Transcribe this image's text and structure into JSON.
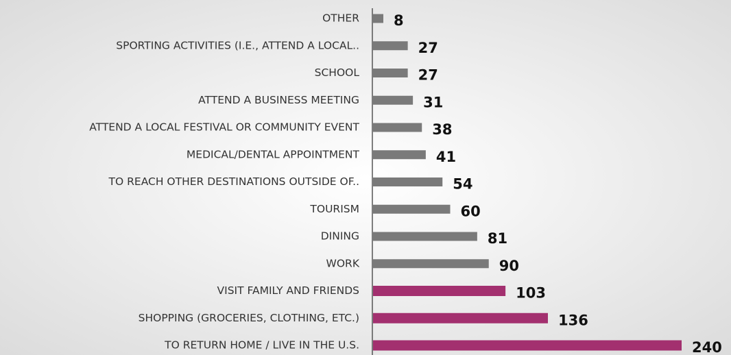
{
  "chart_data": {
    "type": "bar",
    "orientation": "horizontal",
    "categories": [
      "OTHER",
      "SPORTING ACTIVITIES (I.E., ATTEND A LOCAL..",
      "SCHOOL",
      "ATTEND A BUSINESS MEETING",
      "ATTEND A LOCAL FESTIVAL OR COMMUNITY EVENT",
      "MEDICAL/DENTAL APPOINTMENT",
      "TO REACH OTHER DESTINATIONS OUTSIDE OF..",
      "TOURISM",
      "DINING",
      "WORK",
      "VISIT FAMILY AND FRIENDS",
      "SHOPPING (GROCERIES, CLOTHING, ETC.)",
      "TO RETURN HOME / LIVE IN THE U.S."
    ],
    "values": [
      8,
      27,
      27,
      31,
      38,
      41,
      54,
      60,
      81,
      90,
      103,
      136,
      240
    ],
    "colors": [
      "#7a7a7a",
      "#7a7a7a",
      "#7a7a7a",
      "#7a7a7a",
      "#7a7a7a",
      "#7a7a7a",
      "#7a7a7a",
      "#7a7a7a",
      "#7a7a7a",
      "#7a7a7a",
      "#a3306f",
      "#a3306f",
      "#a3306f"
    ]
  }
}
